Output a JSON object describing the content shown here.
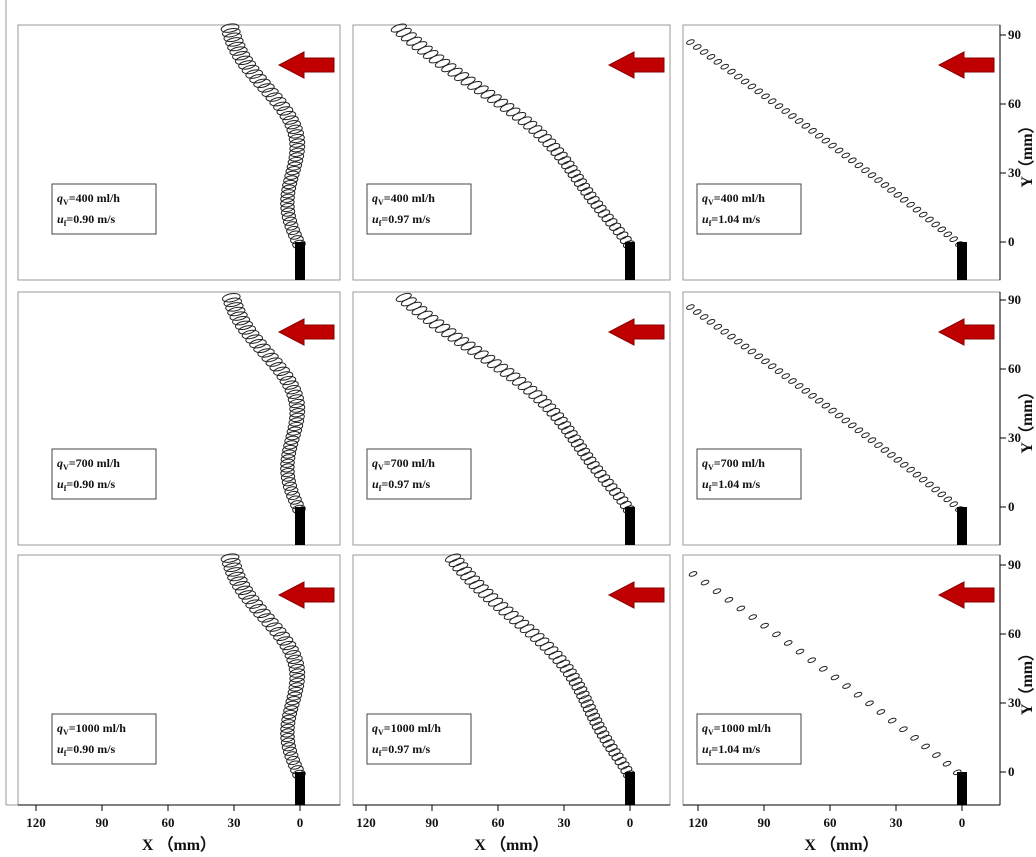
{
  "figure": {
    "x_label": "X （mm）",
    "y_label": "Y（mm）",
    "xticks": [
      120,
      90,
      60,
      30,
      0
    ],
    "yticks": [
      0,
      30,
      60,
      90
    ],
    "panels": [
      {
        "q": "q",
        "q_sub": "V",
        "q_text": "=400 ml/h",
        "u": "u",
        "u_sub": "f",
        "u_text": "=0.90 m/s"
      },
      {
        "q": "q",
        "q_sub": "V",
        "q_text": "=400 ml/h",
        "u": "u",
        "u_sub": "f",
        "u_text": "=0.97 m/s"
      },
      {
        "q": "q",
        "q_sub": "V",
        "q_text": "=400 ml/h",
        "u": "u",
        "u_sub": "f",
        "u_text": "=1.04 m/s"
      },
      {
        "q": "q",
        "q_sub": "V",
        "q_text": "=700 ml/h",
        "u": "u",
        "u_sub": "f",
        "u_text": "=0.90 m/s"
      },
      {
        "q": "q",
        "q_sub": "V",
        "q_text": "=700 ml/h",
        "u": "u",
        "u_sub": "f",
        "u_text": "=0.97 m/s"
      },
      {
        "q": "q",
        "q_sub": "V",
        "q_text": "=700 ml/h",
        "u": "u",
        "u_sub": "f",
        "u_text": "=1.04 m/s"
      },
      {
        "q": "q",
        "q_sub": "V",
        "q_text": "=1000 ml/h",
        "u": "u",
        "u_sub": "f",
        "u_text": "=0.90 m/s"
      },
      {
        "q": "q",
        "q_sub": "V",
        "q_text": "=1000 ml/h",
        "u": "u",
        "u_sub": "f",
        "u_text": "=0.97 m/s"
      },
      {
        "q": "q",
        "q_sub": "V",
        "q_text": "=1000 ml/h",
        "u": "u",
        "u_sub": "f",
        "u_text": "=1.04 m/s"
      }
    ]
  }
}
